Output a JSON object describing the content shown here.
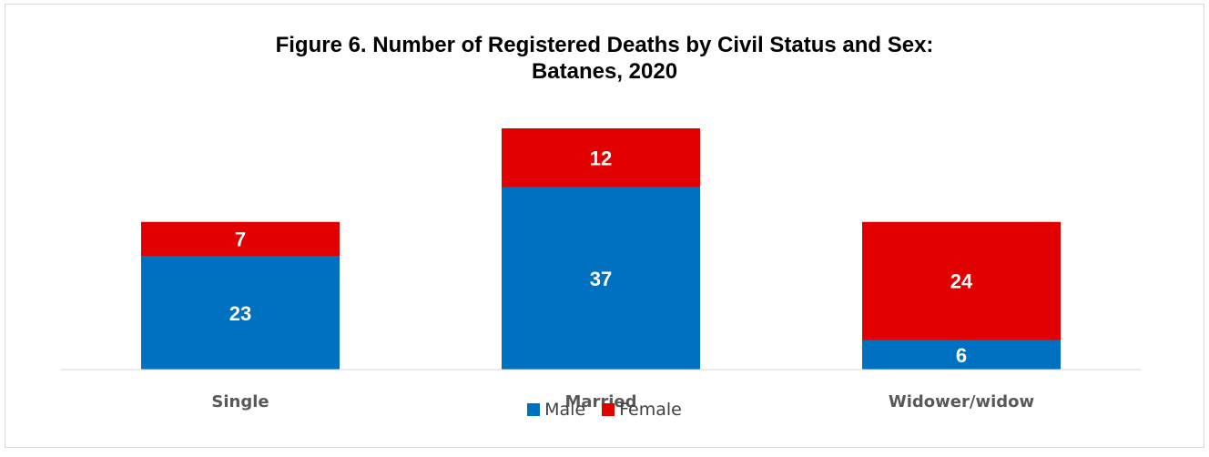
{
  "chart_data": {
    "type": "bar",
    "stacked": true,
    "title": [
      "Figure 6. Number of Registered Deaths by Civil Status and Sex:",
      "Batanes, 2020"
    ],
    "categories": [
      "Single",
      "Married",
      "Widower/widow"
    ],
    "series": [
      {
        "name": "Male",
        "values": [
          23,
          37,
          6
        ],
        "color": "#0070C0"
      },
      {
        "name": "Female",
        "values": [
          7,
          12,
          24
        ],
        "color": "#E00000"
      }
    ],
    "ylim": [
      0,
      49
    ],
    "grid": false,
    "legend": "bottom",
    "data_labels": true
  }
}
